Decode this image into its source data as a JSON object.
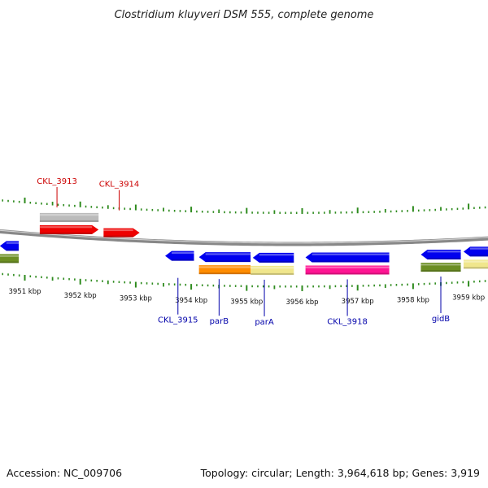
{
  "title": "Clostridium kluyveri DSM 555, complete genome",
  "footer": {
    "accession": "Accession: NC_009706",
    "summary": "Topology: circular; Length: 3,964,618 bp; Genes: 3,919"
  },
  "colors": {
    "backbone": "#888888",
    "ticks": "#2e8b1e",
    "forward_label": "#cc0000",
    "reverse_label": "#0000aa"
  },
  "chart_data": {
    "type": "genome-map",
    "units": "kbp",
    "view_range_kbp": [
      3950.55,
      3960.15
    ],
    "scale_labels": [
      {
        "kbp": 3951,
        "text": "3951 kbp"
      },
      {
        "kbp": 3952,
        "text": "3952 kbp"
      },
      {
        "kbp": 3953,
        "text": "3953 kbp"
      },
      {
        "kbp": 3954,
        "text": "3954 kbp"
      },
      {
        "kbp": 3955,
        "text": "3955 kbp"
      },
      {
        "kbp": 3956,
        "text": "3956 kbp"
      },
      {
        "kbp": 3957,
        "text": "3957 kbp"
      },
      {
        "kbp": 3958,
        "text": "3958 kbp"
      },
      {
        "kbp": 3959,
        "text": "3959 kbp"
      }
    ],
    "features": [
      {
        "id": "f_grey_top",
        "start": 3951.27,
        "end": 3952.33,
        "strand": "+",
        "track": "fwd-outer",
        "color": "#bbbbbb"
      },
      {
        "id": "f_ckl3913",
        "start": 3951.27,
        "end": 3952.33,
        "strand": "+",
        "track": "fwd-inner",
        "color": "#ee0000",
        "label": "CKL_3913"
      },
      {
        "id": "f_ckl3914",
        "start": 3952.42,
        "end": 3953.07,
        "strand": "+",
        "track": "fwd-inner",
        "color": "#ee0000",
        "label": "CKL_3914"
      },
      {
        "id": "f_left_blue",
        "start": 3950.55,
        "end": 3950.89,
        "strand": "-",
        "track": "rev-inner",
        "color": "#0000ee"
      },
      {
        "id": "f_left_green",
        "start": 3950.55,
        "end": 3950.89,
        "strand": "-",
        "track": "rev-outer",
        "color": "#6b8e23"
      },
      {
        "id": "f_ckl3915",
        "start": 3953.53,
        "end": 3954.05,
        "strand": "-",
        "track": "rev-inner",
        "color": "#0000ee",
        "label": "CKL_3915"
      },
      {
        "id": "f_parB",
        "start": 3954.14,
        "end": 3955.07,
        "strand": "-",
        "track": "rev-inner",
        "color": "#0000ee",
        "label": "parB"
      },
      {
        "id": "f_parB_cog",
        "start": 3954.14,
        "end": 3955.07,
        "strand": "-",
        "track": "rev-outer",
        "color": "#ff8c00"
      },
      {
        "id": "f_parA",
        "start": 3955.11,
        "end": 3955.85,
        "strand": "-",
        "track": "rev-inner",
        "color": "#0000ee",
        "label": "parA"
      },
      {
        "id": "f_parA_cog",
        "start": 3955.07,
        "end": 3955.85,
        "strand": "-",
        "track": "rev-outer",
        "color": "#f0e68c"
      },
      {
        "id": "f_ckl3918",
        "start": 3956.06,
        "end": 3957.57,
        "strand": "-",
        "track": "rev-inner",
        "color": "#0000ee",
        "label": "CKL_3918"
      },
      {
        "id": "f_ckl3918_cog",
        "start": 3956.06,
        "end": 3957.57,
        "strand": "-",
        "track": "rev-outer",
        "color": "#ff1493"
      },
      {
        "id": "f_gidB",
        "start": 3958.14,
        "end": 3958.86,
        "strand": "-",
        "track": "rev-inner",
        "color": "#0000ee",
        "label": "gidB"
      },
      {
        "id": "f_gidB_cog",
        "start": 3958.14,
        "end": 3958.86,
        "strand": "-",
        "track": "rev-outer",
        "color": "#6b8e23"
      },
      {
        "id": "f_right_blue",
        "start": 3958.91,
        "end": 3960.15,
        "strand": "-",
        "track": "rev-inner",
        "color": "#0000ee"
      },
      {
        "id": "f_right_cog",
        "start": 3958.91,
        "end": 3960.15,
        "strand": "-",
        "track": "rev-outer",
        "color": "#f0e68c"
      }
    ]
  }
}
